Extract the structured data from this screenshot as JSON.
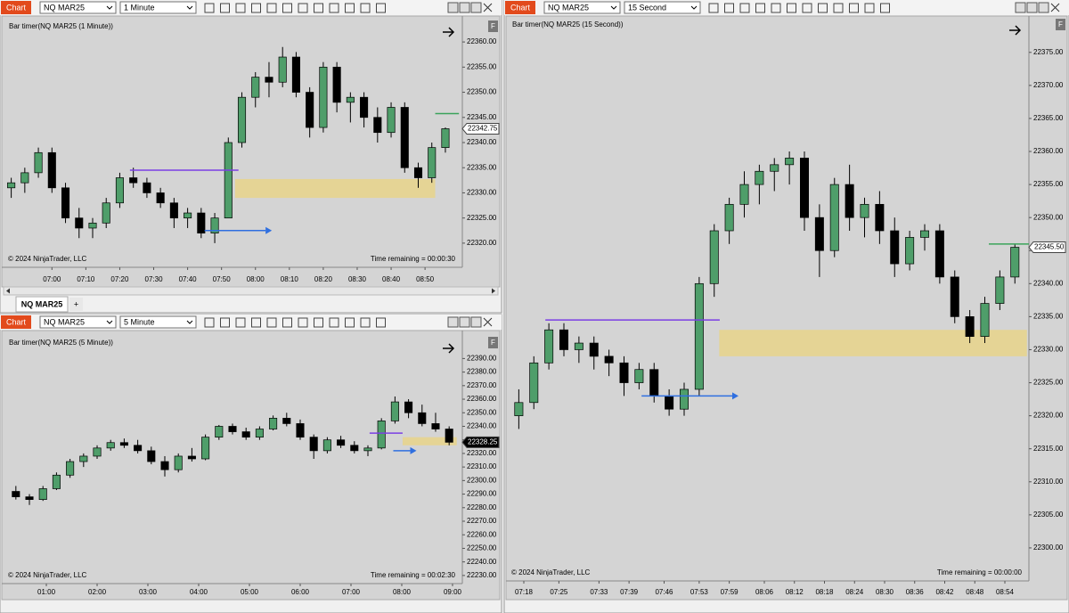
{
  "windows": [
    {
      "label": "Chart",
      "instrument": "NQ MAR25",
      "interval": "1 Minute",
      "badge": "F",
      "tab": "NQ MAR25",
      "tab_add": "+"
    },
    {
      "label": "Chart",
      "instrument": "NQ MAR25",
      "interval": "5 Minute",
      "badge": "F"
    },
    {
      "label": "Chart",
      "instrument": "NQ MAR25",
      "interval": "15 Second",
      "badge": "F"
    }
  ],
  "chart_data": [
    {
      "type": "candlestick",
      "title": "Bar timer(NQ MAR25 (1 Minute))",
      "copyright": "© 2024 NinjaTrader, LLC",
      "status": "Time remaining = 00:00:30",
      "up_color": "#4f9e6a",
      "down_color": "#000000",
      "last_price": {
        "value": 22342.75,
        "label": "22342.75"
      },
      "last_price_color": "#ffffff",
      "xlim": [
        406,
        541
      ],
      "ylim": [
        22315.2,
        22364.8
      ],
      "xticks": [
        {
          "value": 420,
          "label": "07:00"
        },
        {
          "value": 430,
          "label": "07:10"
        },
        {
          "value": 440,
          "label": "07:20"
        },
        {
          "value": 450,
          "label": "07:30"
        },
        {
          "value": 460,
          "label": "07:40"
        },
        {
          "value": 470,
          "label": "07:50"
        },
        {
          "value": 480,
          "label": "08:00"
        },
        {
          "value": 490,
          "label": "08:10"
        },
        {
          "value": 500,
          "label": "08:20"
        },
        {
          "value": 510,
          "label": "08:30"
        },
        {
          "value": 520,
          "label": "08:40"
        },
        {
          "value": 530,
          "label": "08:50"
        }
      ],
      "yticks": [
        {
          "value": 22320,
          "label": "22320.00"
        },
        {
          "value": 22325,
          "label": "22325.00"
        },
        {
          "value": 22330,
          "label": "22330.00"
        },
        {
          "value": 22335,
          "label": "22335.00"
        },
        {
          "value": 22340,
          "label": "22340.00"
        },
        {
          "value": 22345,
          "label": "22345.00"
        },
        {
          "value": 22350,
          "label": "22350.00"
        },
        {
          "value": 22355,
          "label": "22355.00"
        },
        {
          "value": 22360,
          "label": "22360.00"
        }
      ],
      "x": [
        408,
        412,
        416,
        420,
        424,
        428,
        432,
        436,
        440,
        444,
        448,
        452,
        456,
        460,
        464,
        468,
        472,
        476,
        480,
        484,
        488,
        492,
        496,
        500,
        504,
        508,
        512,
        516,
        520,
        524,
        528,
        532,
        536
      ],
      "open": [
        22331,
        22332,
        22334,
        22338,
        22331,
        22325,
        22323,
        22324,
        22328,
        22333,
        22332,
        22330,
        22328,
        22325,
        22326,
        22322,
        22325,
        22340,
        22349,
        22353,
        22352,
        22357,
        22350,
        22343,
        22355,
        22348,
        22349,
        22345,
        22342,
        22347,
        22335,
        22333,
        22339
      ],
      "high": [
        22333,
        22335,
        22339,
        22339,
        22332,
        22327,
        22325,
        22329,
        22334,
        22335,
        22333,
        22331,
        22329,
        22327,
        22327,
        22326,
        22341,
        22350,
        22354,
        22356,
        22359,
        22358,
        22351,
        22356,
        22356,
        22350,
        22350,
        22347,
        22348,
        22348,
        22336,
        22340,
        22343
      ],
      "low": [
        22329,
        22330,
        22333,
        22330,
        22324,
        22321,
        22321,
        22323,
        22327,
        22331,
        22329,
        22327,
        22323,
        22323,
        22321,
        22320,
        22325,
        22339,
        22347,
        22349,
        22351,
        22349,
        22341,
        22342,
        22346,
        22344,
        22343,
        22340,
        22341,
        22334,
        22331,
        22332,
        22338
      ],
      "close": [
        22332,
        22334,
        22338,
        22331,
        22325,
        22323,
        22324,
        22328,
        22333,
        22332,
        22330,
        22328,
        22325,
        22326,
        22322,
        22325,
        22340,
        22349,
        22353,
        22352,
        22357,
        22350,
        22343,
        22355,
        22348,
        22349,
        22345,
        22342,
        22347,
        22335,
        22333,
        22339,
        22342.75
      ],
      "lines": [
        {
          "y": 22334.5,
          "x": [
            443,
            475
          ],
          "color": "#7b3fe4",
          "style": "line"
        },
        {
          "y": 22322.5,
          "x": [
            465,
            483
          ],
          "color": "#2f6fe0",
          "style": "arrow"
        },
        {
          "y": 22345.75,
          "x": [
            533,
            540
          ],
          "color": "#3aa35a",
          "style": "line"
        }
      ],
      "zones": [
        {
          "y": [
            22329,
            22332.75
          ],
          "x": [
            474,
            533
          ],
          "color": "#e8d38a"
        }
      ]
    },
    {
      "type": "candlestick",
      "title": "Bar timer(NQ MAR25 (5 Minute))",
      "copyright": "© 2024 NinjaTrader, LLC",
      "status": "Time remaining = 00:02:30",
      "up_color": "#4f9e6a",
      "down_color": "#000000",
      "last_price": {
        "value": 22328.25,
        "label": "22328.25"
      },
      "last_price_color": "#000000",
      "xlim": [
        10.5,
        551.6
      ],
      "ylim": [
        22224,
        22408
      ],
      "xticks": [
        {
          "value": 60,
          "label": "01:00"
        },
        {
          "value": 120,
          "label": "02:00"
        },
        {
          "value": 180,
          "label": "03:00"
        },
        {
          "value": 240,
          "label": "04:00"
        },
        {
          "value": 300,
          "label": "05:00"
        },
        {
          "value": 360,
          "label": "06:00"
        },
        {
          "value": 420,
          "label": "07:00"
        },
        {
          "value": 480,
          "label": "08:00"
        },
        {
          "value": 540,
          "label": "09:00"
        }
      ],
      "yticks": [
        {
          "value": 22230,
          "label": "22230.00"
        },
        {
          "value": 22240,
          "label": "22240.00"
        },
        {
          "value": 22250,
          "label": "22250.00"
        },
        {
          "value": 22260,
          "label": "22260.00"
        },
        {
          "value": 22270,
          "label": "22270.00"
        },
        {
          "value": 22280,
          "label": "22280.00"
        },
        {
          "value": 22290,
          "label": "22290.00"
        },
        {
          "value": 22300,
          "label": "22300.00"
        },
        {
          "value": 22310,
          "label": "22310.00"
        },
        {
          "value": 22320,
          "label": "22320.00"
        },
        {
          "value": 22330,
          "label": "22330.00"
        },
        {
          "value": 22340,
          "label": "22340.00"
        },
        {
          "value": 22350,
          "label": "22350.00"
        },
        {
          "value": 22360,
          "label": "22360.00"
        },
        {
          "value": 22370,
          "label": "22370.00"
        },
        {
          "value": 22380,
          "label": "22380.00"
        },
        {
          "value": 22390,
          "label": "22390.00"
        }
      ],
      "x": [
        24,
        40,
        56,
        72,
        88,
        104,
        120,
        136,
        152,
        168,
        184,
        200,
        216,
        232,
        248,
        264,
        280,
        296,
        312,
        328,
        344,
        360,
        376,
        392,
        408,
        424,
        440,
        456,
        472,
        488,
        504,
        520,
        536
      ],
      "open": [
        22292,
        22288,
        22286,
        22294,
        22304,
        22314,
        22318,
        22324,
        22328,
        22326,
        22322,
        22314,
        22308,
        22318,
        22316,
        22332,
        22340,
        22336,
        22332,
        22338,
        22346,
        22342,
        22332,
        22322,
        22330,
        22326,
        22322,
        22324,
        22344,
        22358,
        22350,
        22342,
        22338
      ],
      "high": [
        22296,
        22290,
        22296,
        22306,
        22316,
        22320,
        22326,
        22330,
        22331,
        22330,
        22325,
        22318,
        22320,
        22324,
        22334,
        22341,
        22342,
        22339,
        22340,
        22348,
        22350,
        22345,
        22334,
        22332,
        22333,
        22329,
        22326,
        22346,
        22362,
        22360,
        22356,
        22350,
        22340
      ],
      "low": [
        22286,
        22282,
        22285,
        22293,
        22302,
        22310,
        22316,
        22322,
        22324,
        22320,
        22312,
        22303,
        22306,
        22314,
        22315,
        22330,
        22334,
        22330,
        22330,
        22337,
        22340,
        22330,
        22316,
        22320,
        22324,
        22320,
        22318,
        22323,
        22342,
        22346,
        22340,
        22336,
        22326
      ],
      "close": [
        22288,
        22286,
        22294,
        22304,
        22314,
        22318,
        22324,
        22328,
        22326,
        22322,
        22314,
        22308,
        22318,
        22316,
        22332,
        22340,
        22336,
        22332,
        22338,
        22346,
        22342,
        22332,
        22322,
        22330,
        22326,
        22322,
        22324,
        22344,
        22358,
        22350,
        22342,
        22338,
        22328.25
      ],
      "lines": [
        {
          "y": 22335,
          "x": [
            442,
            481
          ],
          "color": "#7b3fe4",
          "style": "line"
        },
        {
          "y": 22322,
          "x": [
            470,
            490
          ],
          "color": "#2f6fe0",
          "style": "arrow"
        }
      ],
      "zones": [
        {
          "y": [
            22326,
            22332
          ],
          "x": [
            481,
            545
          ],
          "color": "#e8d38a"
        }
      ]
    },
    {
      "type": "candlestick",
      "title": "Bar timer(NQ MAR25 (15 Second))",
      "copyright": "© 2024 NinjaTrader, LLC",
      "status": "Time remaining = 00:00:00",
      "up_color": "#4f9e6a",
      "down_color": "#000000",
      "last_price": {
        "value": 22345.5,
        "label": "22345.50"
      },
      "last_price_color": "#ffffff",
      "xlim": [
        434.8,
        538.8
      ],
      "ylim": [
        22295,
        22380.5
      ],
      "xticks": [
        {
          "value": 438,
          "label": "07:18"
        },
        {
          "value": 445,
          "label": "07:25"
        },
        {
          "value": 453,
          "label": "07:33"
        },
        {
          "value": 459,
          "label": "07:39"
        },
        {
          "value": 466,
          "label": "07:46"
        },
        {
          "value": 473,
          "label": "07:53"
        },
        {
          "value": 479,
          "label": "07:59"
        },
        {
          "value": 486,
          "label": "08:06"
        },
        {
          "value": 492,
          "label": "08:12"
        },
        {
          "value": 498,
          "label": "08:18"
        },
        {
          "value": 504,
          "label": "08:24"
        },
        {
          "value": 510,
          "label": "08:30"
        },
        {
          "value": 516,
          "label": "08:36"
        },
        {
          "value": 522,
          "label": "08:42"
        },
        {
          "value": 528,
          "label": "08:48"
        },
        {
          "value": 534,
          "label": "08:54"
        }
      ],
      "yticks": [
        {
          "value": 22300,
          "label": "22300.00"
        },
        {
          "value": 22305,
          "label": "22305.00"
        },
        {
          "value": 22310,
          "label": "22310.00"
        },
        {
          "value": 22315,
          "label": "22315.00"
        },
        {
          "value": 22320,
          "label": "22320.00"
        },
        {
          "value": 22325,
          "label": "22325.00"
        },
        {
          "value": 22330,
          "label": "22330.00"
        },
        {
          "value": 22335,
          "label": "22335.00"
        },
        {
          "value": 22340,
          "label": "22340.00"
        },
        {
          "value": 22345,
          "label": "22345.00"
        },
        {
          "value": 22350,
          "label": "22350.00"
        },
        {
          "value": 22355,
          "label": "22355.00"
        },
        {
          "value": 22360,
          "label": "22360.00"
        },
        {
          "value": 22365,
          "label": "22365.00"
        },
        {
          "value": 22370,
          "label": "22370.00"
        },
        {
          "value": 22375,
          "label": "22375.00"
        }
      ],
      "x": [
        437,
        440,
        443,
        446,
        449,
        452,
        455,
        458,
        461,
        464,
        467,
        470,
        473,
        476,
        479,
        482,
        485,
        488,
        491,
        494,
        497,
        500,
        503,
        506,
        509,
        512,
        515,
        518,
        521,
        524,
        527,
        530,
        533,
        536
      ],
      "open": [
        22320,
        22322,
        22328,
        22333,
        22330,
        22331,
        22329,
        22328,
        22325,
        22327,
        22323,
        22321,
        22324,
        22340,
        22348,
        22352,
        22355,
        22357,
        22358,
        22359,
        22350,
        22345,
        22355,
        22350,
        22352,
        22348,
        22343,
        22347,
        22348,
        22341,
        22335,
        22332,
        22337,
        22341
      ],
      "high": [
        22324,
        22329,
        22334,
        22334,
        22332,
        22332,
        22330,
        22329,
        22328,
        22328,
        22324,
        22325,
        22341,
        22349,
        22353,
        22357,
        22358,
        22359,
        22360,
        22360,
        22352,
        22356,
        22358,
        22353,
        22354,
        22350,
        22348,
        22349,
        22349,
        22342,
        22336,
        22338,
        22342,
        22346
      ],
      "low": [
        22318,
        22321,
        22327,
        22329,
        22328,
        22327,
        22326,
        22323,
        22324,
        22322,
        22320,
        22320,
        22323,
        22338,
        22346,
        22350,
        22352,
        22354,
        22355,
        22348,
        22341,
        22344,
        22348,
        22347,
        22346,
        22341,
        22342,
        22345,
        22340,
        22334,
        22331,
        22331,
        22336,
        22340
      ],
      "close": [
        22322,
        22328,
        22333,
        22330,
        22331,
        22329,
        22328,
        22325,
        22327,
        22323,
        22321,
        22324,
        22340,
        22348,
        22352,
        22355,
        22357,
        22358,
        22359,
        22350,
        22345,
        22355,
        22350,
        22352,
        22348,
        22343,
        22347,
        22348,
        22341,
        22335,
        22332,
        22337,
        22341,
        22345.5
      ],
      "lines": [
        {
          "y": 22334.5,
          "x": [
            442.3,
            477.1
          ],
          "color": "#7b3fe4",
          "style": "line"
        },
        {
          "y": 22323,
          "x": [
            461.5,
            479.6
          ],
          "color": "#2f6fe0",
          "style": "arrow"
        },
        {
          "y": 22346,
          "x": [
            530.8,
            538.8
          ],
          "color": "#3aa35a",
          "style": "line"
        }
      ],
      "zones": [
        {
          "y": [
            22329,
            22333
          ],
          "x": [
            477,
            538.4
          ],
          "color": "#e8d38a"
        }
      ]
    }
  ]
}
